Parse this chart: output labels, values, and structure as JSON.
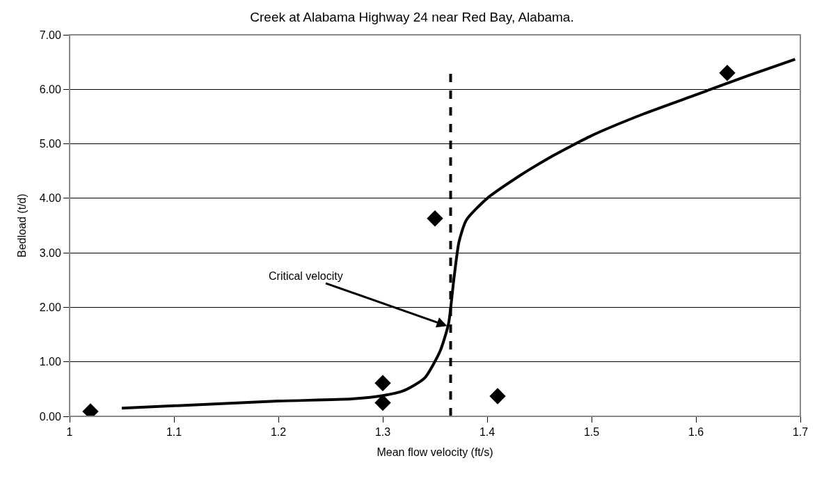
{
  "chart_data": {
    "type": "scatter",
    "title": "Creek at Alabama Highway 24 near Red Bay, Alabama.",
    "xlabel": "Mean flow velocity (ft/s)",
    "ylabel": "Bedload (t/d)",
    "series": [
      {
        "color": "#000000",
        "marker": "diamond",
        "x": [
          1.02,
          1.3,
          1.3,
          1.35,
          1.41,
          1.63
        ],
        "values": [
          0.09,
          0.61,
          0.25,
          3.63,
          0.37,
          6.3
        ]
      },
      {
        "type": "line",
        "color": "#000000",
        "marker": "none",
        "line_style": "solid",
        "x": [
          1.05,
          1.2,
          1.27,
          1.3,
          1.32,
          1.34,
          1.355,
          1.363,
          1.368,
          1.373,
          1.38,
          1.4,
          1.43,
          1.46,
          1.5,
          1.55,
          1.6,
          1.65,
          1.695
        ],
        "values": [
          0.15,
          0.28,
          0.32,
          0.38,
          0.47,
          0.7,
          1.2,
          1.7,
          2.5,
          3.2,
          3.6,
          4.0,
          4.4,
          4.75,
          5.15,
          5.55,
          5.9,
          6.25,
          6.55
        ]
      }
    ],
    "ref_lines": [
      {
        "axis": "x",
        "value": 1.365,
        "color": "#000000",
        "line_style": "dashed"
      }
    ],
    "annotations": [
      {
        "text": "Critical velocity",
        "x": 1.363,
        "y": 1.65
      }
    ],
    "xlim": [
      1,
      1.7
    ],
    "xticks": [
      1,
      1.1,
      1.2,
      1.3,
      1.4,
      1.5,
      1.6,
      1.7
    ],
    "ylim": [
      0,
      7
    ],
    "yticks": [
      {
        "value": 0,
        "label": "0.00"
      },
      {
        "value": 1,
        "label": "1.00"
      },
      {
        "value": 2,
        "label": "2.00"
      },
      {
        "value": 3,
        "label": "3.00"
      },
      {
        "value": 4,
        "label": "4.00"
      },
      {
        "value": 5,
        "label": "5.00"
      },
      {
        "value": 6,
        "label": "6.00"
      },
      {
        "value": 7,
        "label": "7.00"
      }
    ],
    "grid": "y"
  }
}
